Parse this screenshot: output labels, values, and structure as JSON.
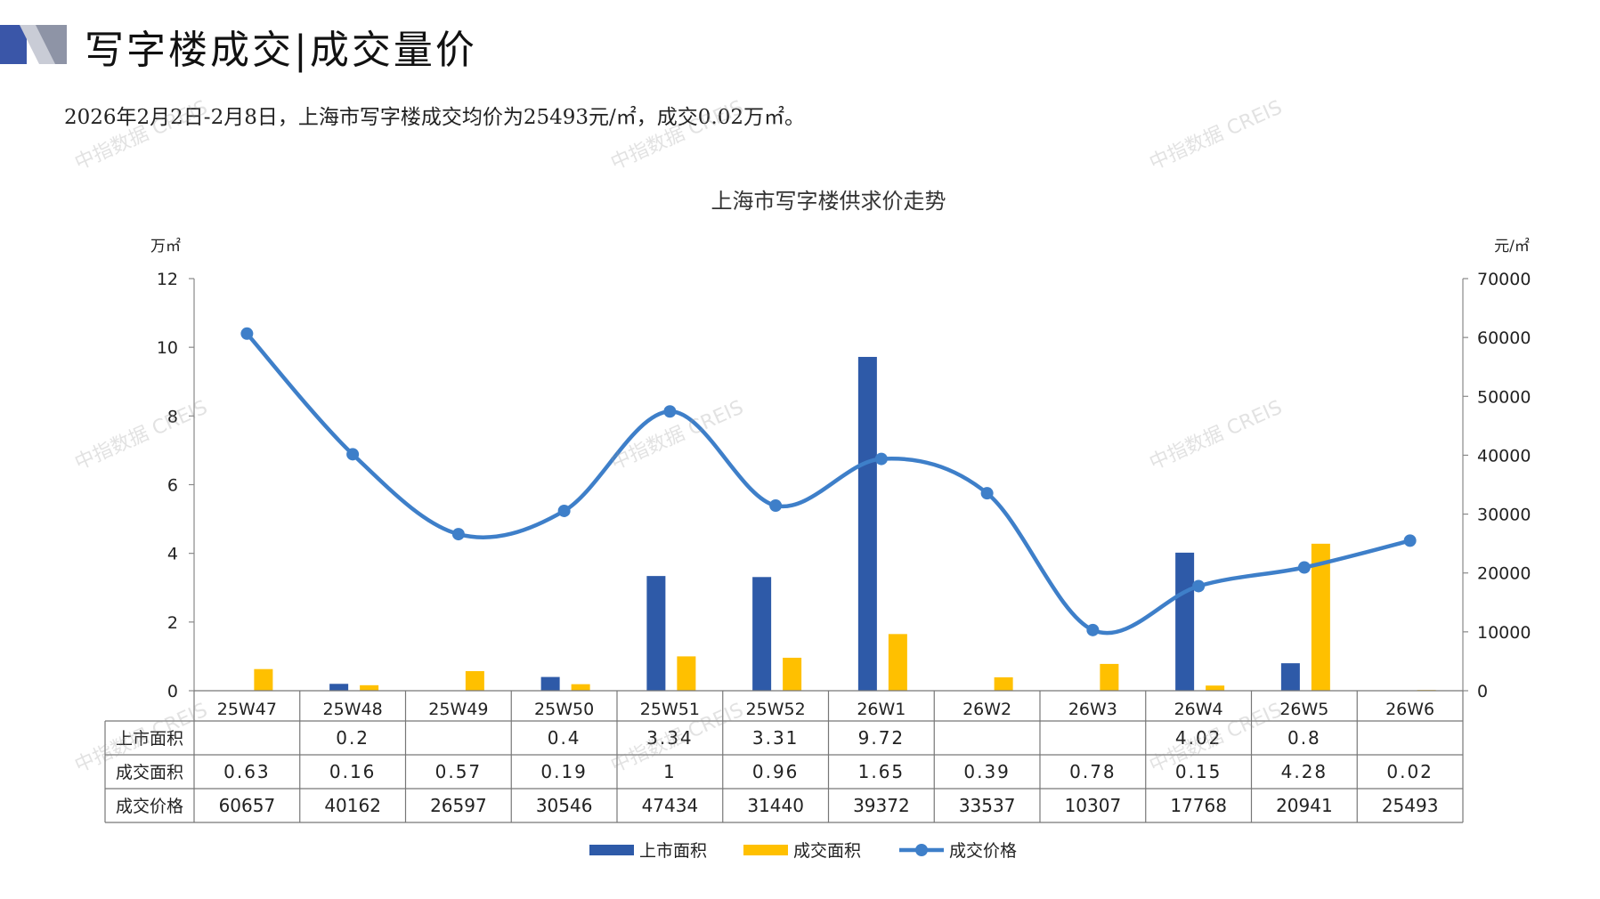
{
  "header": {
    "title": "写字楼成交|成交量价",
    "summary": "2026年2月2日-2月8日，上海市写字楼成交均价为25493元/㎡，成交0.02万㎡。"
  },
  "watermark": {
    "text": "中指数据 CREIS"
  },
  "colors": {
    "supply": "#2e5aa8",
    "deal": "#ffc000",
    "price": "#3e7fc9",
    "accent": "#3a56a8"
  },
  "chart_data": {
    "type": "bar",
    "title": "上海市写字楼供求价走势",
    "y_left_unit": "万㎡",
    "y_right_unit": "元/㎡",
    "y_left_ticks": [
      "0",
      "2",
      "4",
      "6",
      "8",
      "10",
      "12"
    ],
    "y_right_ticks": [
      "0",
      "10000",
      "20000",
      "30000",
      "40000",
      "50000",
      "60000",
      "70000"
    ],
    "ylim_left": [
      0,
      12
    ],
    "ylim_right": [
      0,
      70000
    ],
    "categories": [
      "25W47",
      "25W48",
      "25W49",
      "25W50",
      "25W51",
      "25W52",
      "26W1",
      "26W2",
      "26W3",
      "26W4",
      "26W5",
      "26W6"
    ],
    "series": [
      {
        "name": "上市面积",
        "type": "bar",
        "axis": "left",
        "values": [
          null,
          0.2,
          null,
          0.4,
          3.34,
          3.31,
          9.72,
          null,
          null,
          4.02,
          0.8,
          null
        ]
      },
      {
        "name": "成交面积",
        "type": "bar",
        "axis": "left",
        "values": [
          0.63,
          0.16,
          0.57,
          0.19,
          1,
          0.96,
          1.65,
          0.39,
          0.78,
          0.15,
          4.28,
          0.02
        ]
      },
      {
        "name": "成交价格",
        "type": "line",
        "axis": "right",
        "values": [
          60657,
          40162,
          26597,
          30546,
          47434,
          31440,
          39372,
          33537,
          10307,
          17768,
          20941,
          25493
        ]
      }
    ],
    "legend": "bottom"
  }
}
